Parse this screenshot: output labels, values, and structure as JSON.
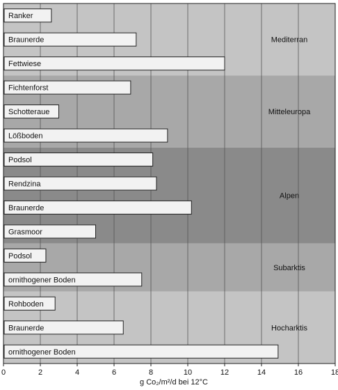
{
  "chart_data": {
    "type": "bar",
    "orientation": "horizontal",
    "xlabel": "g Co₂/m²/d bei 12°C",
    "xlim": [
      0,
      18
    ],
    "xticks": [
      0,
      2,
      4,
      6,
      8,
      10,
      12,
      14,
      16,
      18
    ],
    "grid": true,
    "categories": [
      "Ranker",
      "Braunerde",
      "Fettwiese",
      "Fichtenforst",
      "Schotteraue",
      "Lößboden",
      "Podsol",
      "Rendzina",
      "Braunerde",
      "Grasmoor",
      "Podsol",
      "ornithogener Boden",
      "Rohboden",
      "Braunerde",
      "ornithogener Boden"
    ],
    "values": [
      2.6,
      7.2,
      12.0,
      6.9,
      3.0,
      8.9,
      8.1,
      8.3,
      10.2,
      5.0,
      2.3,
      7.5,
      2.8,
      6.5,
      14.9
    ],
    "regions": [
      {
        "name": "Mediterran",
        "bars": [
          0,
          1,
          2
        ],
        "shade": "#c4c4c4"
      },
      {
        "name": "Mitteleuropa",
        "bars": [
          3,
          4,
          5
        ],
        "shade": "#a8a8a8"
      },
      {
        "name": "Alpen",
        "bars": [
          6,
          7,
          8,
          9
        ],
        "shade": "#8a8a8a"
      },
      {
        "name": "Subarktis",
        "bars": [
          10,
          11
        ],
        "shade": "#a8a8a8"
      },
      {
        "name": "Hocharktis",
        "bars": [
          12,
          13,
          14
        ],
        "shade": "#c4c4c4"
      }
    ],
    "bar_color": "#f2f2f2",
    "bar_stroke": "#222222"
  }
}
